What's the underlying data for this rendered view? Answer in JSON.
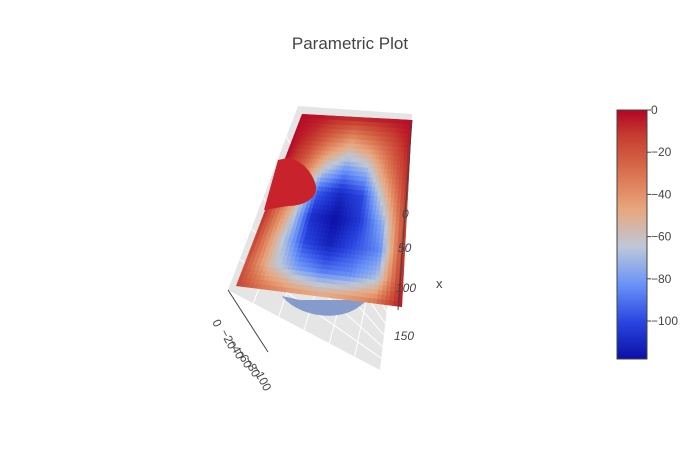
{
  "chart_data": {
    "type": "surface",
    "title": "Parametric Plot",
    "axes": {
      "x": {
        "label": "x",
        "ticks": [
          "0",
          "50",
          "100",
          "150"
        ]
      },
      "y": {
        "label": "",
        "ticks": [
          "0",
          "−20",
          "−40",
          "−60",
          "−80",
          "−100"
        ]
      }
    },
    "surface": {
      "z_range": [
        -118,
        0
      ],
      "z_grid": [
        [
          -2,
          -3,
          -5,
          -5,
          -4,
          -3,
          -2
        ],
        [
          -1,
          -12,
          -30,
          -45,
          -35,
          -20,
          -4
        ],
        [
          -1,
          -25,
          -60,
          -80,
          -70,
          -35,
          -6
        ],
        [
          -3,
          -35,
          -95,
          -110,
          -100,
          -55,
          -8
        ],
        [
          -8,
          -50,
          -108,
          -118,
          -105,
          -75,
          -10
        ],
        [
          -12,
          -60,
          -100,
          -112,
          -98,
          -85,
          -6
        ],
        [
          -18,
          -58,
          -80,
          -90,
          -85,
          -70,
          -4
        ],
        [
          -15,
          -30,
          -40,
          -45,
          -40,
          -30,
          -2
        ]
      ]
    },
    "colorbar": {
      "ticks": [
        "0",
        "−20",
        "−40",
        "−60",
        "−80",
        "−100"
      ],
      "tick_values": [
        0,
        -20,
        -40,
        -60,
        -80,
        -100
      ],
      "range": [
        -118,
        0
      ],
      "colorscale": [
        [
          0.0,
          "#0b0fa8"
        ],
        [
          0.15,
          "#2a46e0"
        ],
        [
          0.3,
          "#6a93f8"
        ],
        [
          0.45,
          "#bcc8d8"
        ],
        [
          0.6,
          "#e8a77e"
        ],
        [
          0.75,
          "#d9714e"
        ],
        [
          0.9,
          "#c53b2f"
        ],
        [
          1.0,
          "#b40426"
        ]
      ]
    },
    "colors": {
      "grid": "#ffffff",
      "wall": "#e6e6e6",
      "text": "#444444"
    }
  }
}
